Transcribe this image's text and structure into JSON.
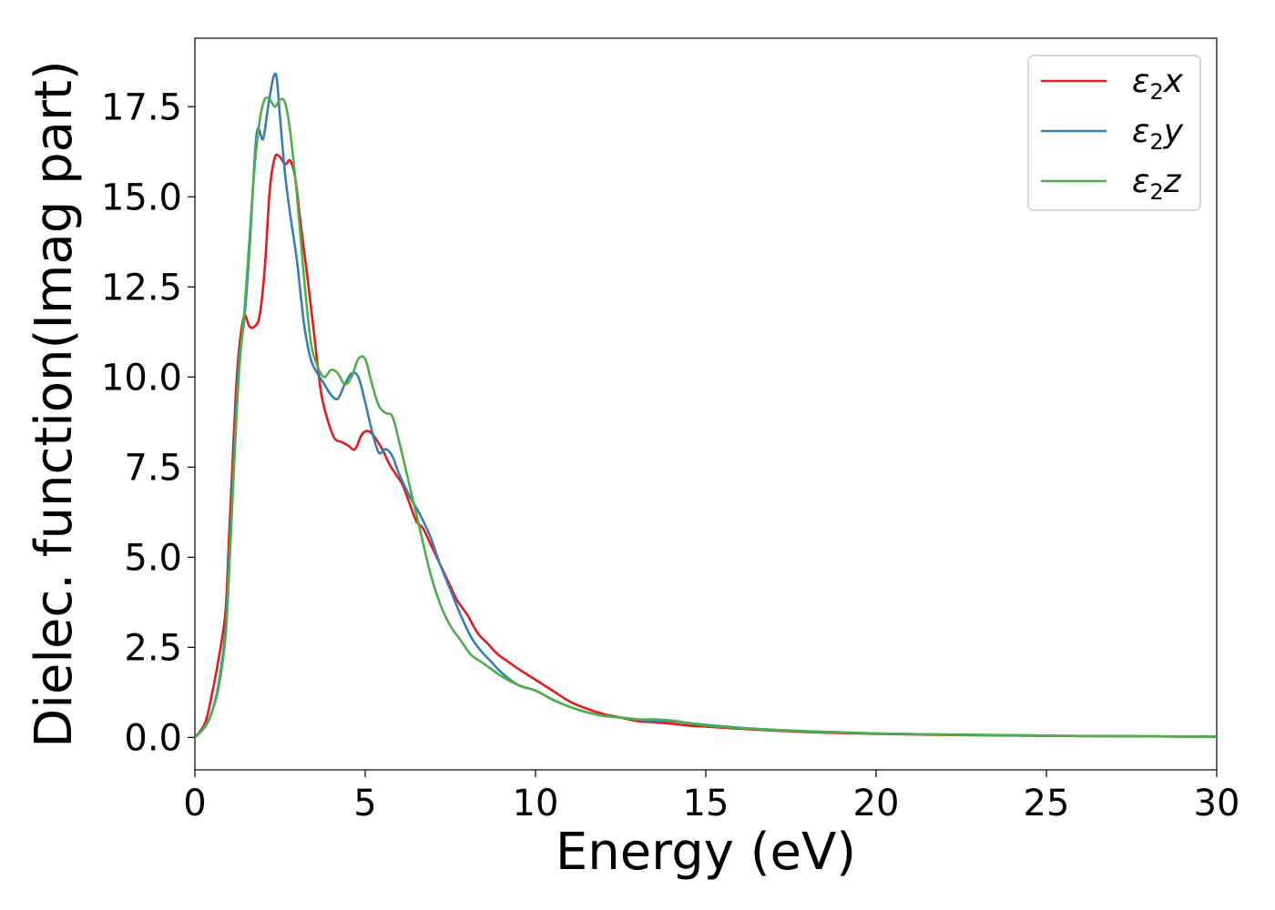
{
  "chart_data": {
    "type": "line",
    "title": "",
    "xlabel": "Energy (eV)",
    "ylabel": "Dielec. function(Imag part)",
    "xlim": [
      0,
      30
    ],
    "ylim": [
      -0.9,
      19.4
    ],
    "xticks": [
      0,
      5,
      10,
      15,
      20,
      25,
      30
    ],
    "xtick_labels": [
      "0",
      "5",
      "10",
      "15",
      "20",
      "25",
      "30"
    ],
    "yticks": [
      0.0,
      2.5,
      5.0,
      7.5,
      10.0,
      12.5,
      15.0,
      17.5
    ],
    "ytick_labels": [
      "0.0",
      "2.5",
      "5.0",
      "7.5",
      "10.0",
      "12.5",
      "15.0",
      "17.5"
    ],
    "grid": false,
    "legend_position": "top-right",
    "series": [
      {
        "name": "ε2x",
        "legend_main": "ε",
        "legend_sub": "2",
        "legend_suffix": "x",
        "color": "#e41a1c",
        "x": [
          0,
          0.3,
          0.5,
          0.7,
          0.9,
          1.0,
          1.1,
          1.2,
          1.3,
          1.45,
          1.6,
          1.75,
          1.9,
          2.05,
          2.2,
          2.35,
          2.5,
          2.65,
          2.8,
          2.95,
          3.1,
          3.3,
          3.5,
          3.7,
          3.9,
          4.1,
          4.3,
          4.5,
          4.7,
          4.9,
          5.1,
          5.3,
          5.5,
          5.7,
          5.9,
          6.1,
          6.3,
          6.5,
          6.7,
          6.9,
          7.1,
          7.3,
          7.5,
          7.7,
          8.0,
          8.3,
          8.6,
          8.9,
          9.2,
          9.5,
          10.0,
          10.5,
          11.0,
          11.5,
          12.0,
          12.5,
          13.0,
          13.5,
          14.0,
          14.5,
          15.0,
          16.0,
          17.0,
          18.0,
          19.0,
          20.0,
          22.0,
          24.0,
          26.0,
          28.0,
          30.0
        ],
        "y": [
          0.0,
          0.4,
          1.2,
          2.2,
          3.5,
          5.5,
          7.5,
          9.5,
          10.8,
          11.7,
          11.4,
          11.4,
          11.7,
          13.0,
          15.2,
          16.1,
          16.1,
          15.9,
          16.0,
          15.5,
          14.3,
          12.8,
          11.2,
          9.6,
          8.8,
          8.3,
          8.2,
          8.1,
          8.0,
          8.4,
          8.5,
          8.3,
          8.0,
          7.6,
          7.3,
          7.0,
          6.5,
          6.0,
          5.8,
          5.4,
          5.0,
          4.6,
          4.2,
          3.8,
          3.4,
          2.9,
          2.6,
          2.3,
          2.1,
          1.9,
          1.6,
          1.3,
          1.0,
          0.8,
          0.65,
          0.55,
          0.45,
          0.42,
          0.38,
          0.33,
          0.3,
          0.24,
          0.19,
          0.15,
          0.12,
          0.1,
          0.07,
          0.05,
          0.04,
          0.03,
          0.02
        ]
      },
      {
        "name": "ε2y",
        "legend_main": "ε",
        "legend_sub": "2",
        "legend_suffix": "y",
        "color": "#377eb8",
        "x": [
          0,
          0.3,
          0.5,
          0.7,
          0.9,
          1.0,
          1.1,
          1.2,
          1.3,
          1.45,
          1.6,
          1.75,
          1.85,
          2.0,
          2.15,
          2.3,
          2.4,
          2.5,
          2.65,
          2.8,
          3.0,
          3.2,
          3.4,
          3.6,
          3.8,
          4.0,
          4.2,
          4.4,
          4.6,
          4.8,
          5.0,
          5.2,
          5.4,
          5.6,
          5.8,
          6.0,
          6.3,
          6.6,
          6.9,
          7.2,
          7.5,
          7.8,
          8.1,
          8.4,
          8.7,
          9.0,
          9.5,
          10.0,
          10.5,
          11.0,
          11.5,
          12.0,
          12.5,
          13.0,
          13.5,
          14.0,
          14.5,
          15.0,
          16.0,
          17.0,
          18.0,
          19.0,
          20.0,
          22.0,
          24.0,
          26.0,
          28.0,
          30.0
        ],
        "y": [
          0.0,
          0.3,
          0.7,
          1.5,
          3.0,
          4.8,
          6.8,
          8.8,
          10.5,
          11.6,
          13.5,
          16.0,
          16.9,
          16.6,
          17.5,
          18.3,
          18.3,
          17.2,
          15.6,
          14.5,
          13.2,
          11.5,
          10.5,
          10.1,
          9.8,
          9.5,
          9.4,
          9.8,
          10.1,
          10.0,
          9.3,
          8.5,
          7.9,
          8.0,
          7.8,
          7.3,
          6.7,
          6.2,
          5.6,
          4.8,
          4.1,
          3.4,
          2.8,
          2.4,
          2.1,
          1.8,
          1.45,
          1.3,
          1.05,
          0.85,
          0.7,
          0.6,
          0.55,
          0.5,
          0.45,
          0.45,
          0.4,
          0.35,
          0.27,
          0.21,
          0.17,
          0.14,
          0.11,
          0.08,
          0.06,
          0.04,
          0.03,
          0.02
        ]
      },
      {
        "name": "ε2z",
        "legend_main": "ε",
        "legend_sub": "2",
        "legend_suffix": "z",
        "color": "#4daf4a",
        "x": [
          0,
          0.3,
          0.5,
          0.7,
          0.9,
          1.0,
          1.1,
          1.2,
          1.3,
          1.45,
          1.6,
          1.75,
          1.9,
          2.05,
          2.2,
          2.35,
          2.5,
          2.65,
          2.8,
          3.0,
          3.2,
          3.4,
          3.6,
          3.8,
          4.0,
          4.2,
          4.4,
          4.6,
          4.8,
          5.0,
          5.2,
          5.4,
          5.6,
          5.8,
          6.0,
          6.3,
          6.6,
          6.9,
          7.2,
          7.5,
          7.8,
          8.1,
          8.4,
          8.7,
          9.0,
          9.5,
          10.0,
          10.5,
          11.0,
          11.5,
          12.0,
          12.5,
          13.0,
          13.5,
          14.0,
          14.5,
          15.0,
          16.0,
          17.0,
          18.0,
          19.0,
          20.0,
          22.0,
          24.0,
          26.0,
          28.0,
          30.0
        ],
        "y": [
          0.0,
          0.3,
          0.7,
          1.4,
          2.8,
          4.5,
          6.5,
          8.5,
          10.2,
          11.8,
          13.8,
          15.8,
          17.1,
          17.7,
          17.7,
          17.5,
          17.7,
          17.6,
          16.8,
          15.0,
          12.8,
          11.0,
          10.3,
          10.0,
          10.2,
          10.1,
          9.8,
          10.0,
          10.5,
          10.5,
          9.8,
          9.2,
          9.0,
          8.9,
          8.2,
          7.0,
          5.8,
          4.6,
          3.7,
          3.1,
          2.7,
          2.3,
          2.1,
          1.9,
          1.7,
          1.45,
          1.3,
          1.05,
          0.85,
          0.7,
          0.6,
          0.55,
          0.5,
          0.5,
          0.47,
          0.4,
          0.33,
          0.26,
          0.21,
          0.17,
          0.14,
          0.11,
          0.08,
          0.06,
          0.04,
          0.03,
          0.02
        ]
      }
    ]
  }
}
